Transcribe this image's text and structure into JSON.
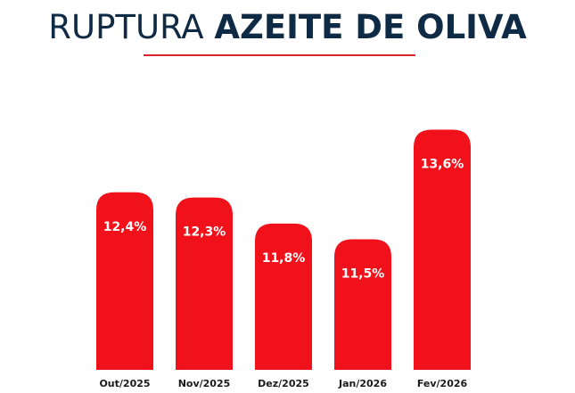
{
  "title": {
    "light": "RUPTURA",
    "bold": "AZEITE DE OLIVA"
  },
  "colors": {
    "bar": "#f0111a",
    "title": "#0f2a44",
    "divider": "#e0202a"
  },
  "chart_data": {
    "type": "bar",
    "title": "RUPTURA AZEITE DE OLIVA",
    "categories": [
      "Out/2025",
      "Nov/2025",
      "Dez/2025",
      "Jan/2026",
      "Fev/2026"
    ],
    "values": [
      12.4,
      12.3,
      11.8,
      11.5,
      13.6
    ],
    "value_labels": [
      "12,4%",
      "12,3%",
      "11,8%",
      "11,5%",
      "13,6%"
    ],
    "xlabel": "",
    "ylabel": "",
    "ylim": [
      9.0,
      14.0
    ],
    "grid": false,
    "legend": "none",
    "y_axis_visible": false
  }
}
